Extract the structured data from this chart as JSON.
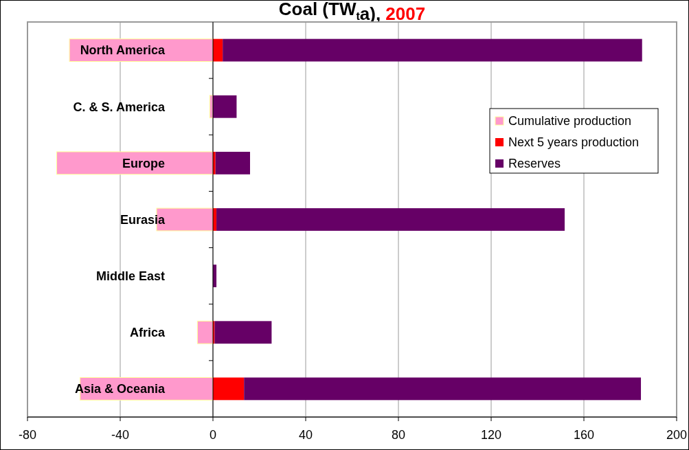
{
  "chart_data": {
    "type": "bar",
    "orientation": "horizontal",
    "stacked": true,
    "title": "Coal (TW$_{t}$a), 2007",
    "categories": [
      "North America",
      "C. & S. America",
      "Europe",
      "Eurasia",
      "Middle East",
      "Africa",
      "Asia & Oceania"
    ],
    "series": [
      {
        "name": "Cumulative production",
        "color": "#ff99cc",
        "values": [
          -61.9,
          -1.4,
          -67.4,
          -24.3,
          0,
          -6.7,
          -57.3
        ]
      },
      {
        "name": "Next 5 years production",
        "color": "#ff0000",
        "values": [
          4.2,
          0,
          1.1,
          1.5,
          0,
          0.7,
          13.4
        ]
      },
      {
        "name": "Reserves",
        "color": "#660066",
        "values": [
          180.9,
          10.2,
          14.9,
          150.2,
          1.5,
          24.6,
          171.2
        ]
      }
    ],
    "xlim": [
      -80,
      200
    ],
    "xticks": [
      -80,
      -40,
      0,
      40,
      80,
      120,
      160,
      200
    ],
    "grid": "x",
    "legend": "top right"
  }
}
